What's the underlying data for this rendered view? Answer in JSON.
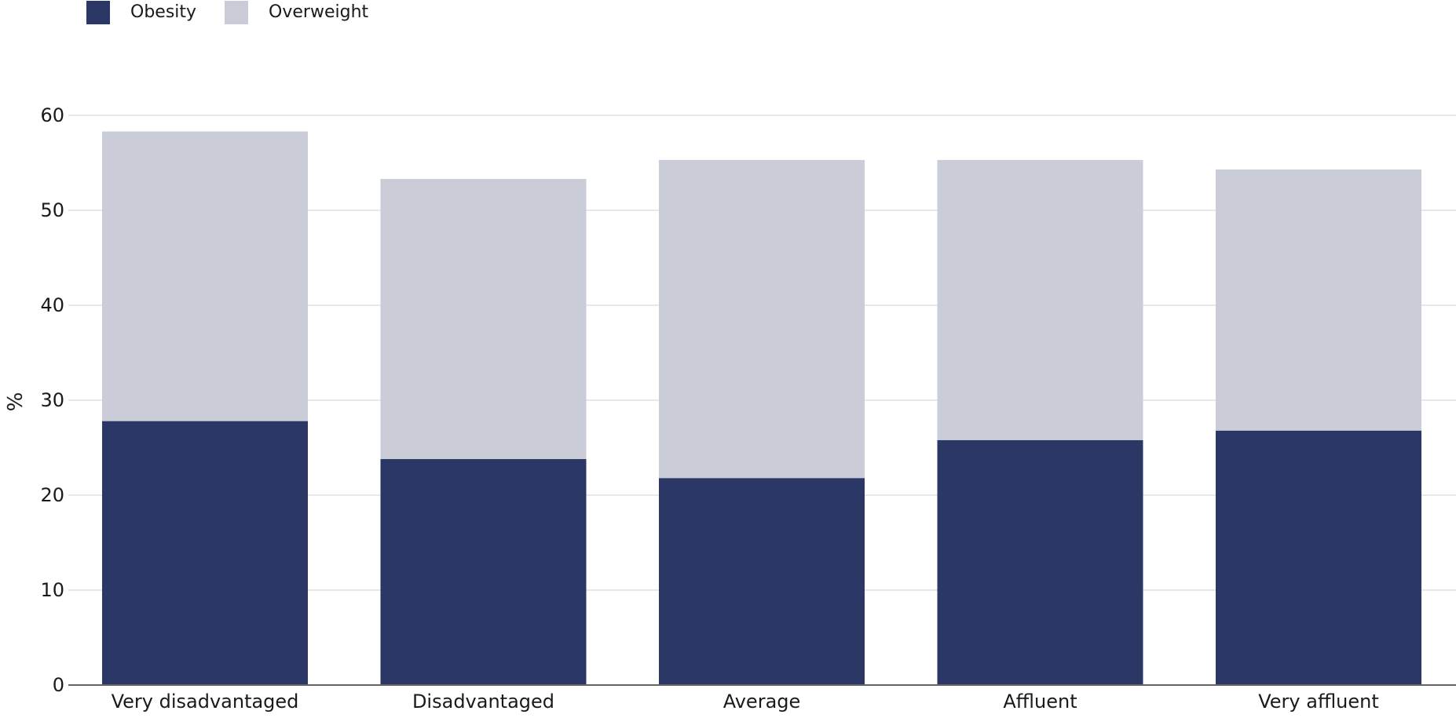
{
  "chart_data": {
    "type": "bar",
    "stacked": true,
    "categories": [
      "Very disadvantaged",
      "Disadvantaged",
      "Average",
      "Affluent",
      "Very affluent"
    ],
    "series": [
      {
        "name": "Obesity",
        "color": "#2b3764",
        "values": [
          27.8,
          23.8,
          21.8,
          25.8,
          26.8
        ]
      },
      {
        "name": "Overweight",
        "color": "#caccd8",
        "values": [
          30.5,
          29.5,
          33.5,
          29.5,
          27.5
        ]
      }
    ],
    "xlabel": "",
    "ylabel": "%",
    "ylim": [
      0,
      60
    ],
    "yticks": [
      0,
      10,
      20,
      30,
      40,
      50,
      60
    ],
    "grid": true,
    "legend_position": "top-left"
  }
}
